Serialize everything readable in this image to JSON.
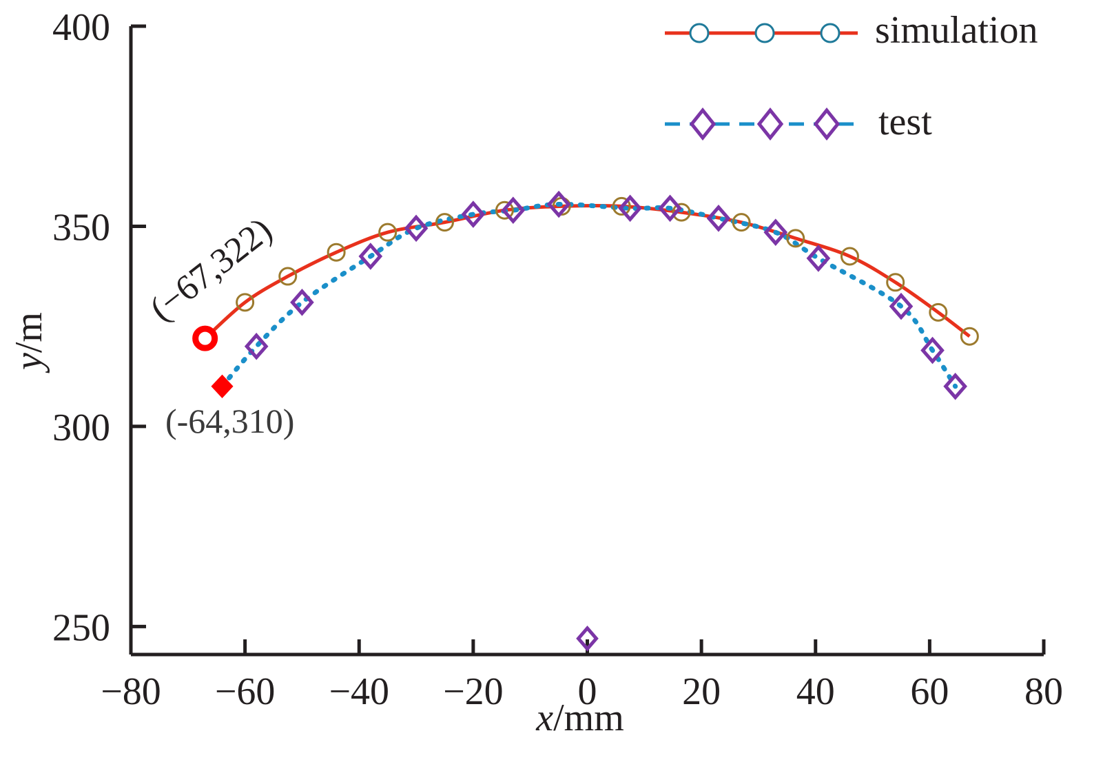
{
  "colors": {
    "axis": "#231f20",
    "simulation_line": "#e8311c",
    "simulation_marker": "#9c7a2d",
    "simulation_legend_marker": "#1f7a9a",
    "test_line": "#1a8fc9",
    "test_marker": "#7b35a6",
    "highlight": "#ff0000",
    "label_text": "#3a3a3a"
  },
  "chart_data": {
    "type": "line",
    "title": "",
    "xlabel_var": "x",
    "xlabel_unit": "/mm",
    "ylabel_var": "y",
    "ylabel_unit": "/m",
    "xlim": [
      -80,
      80
    ],
    "ylim": [
      243,
      400
    ],
    "x_ticks": [
      -80,
      -60,
      -40,
      -20,
      0,
      20,
      40,
      60,
      80
    ],
    "x_tick_labels": [
      "−80",
      "−60",
      "−40",
      "−20",
      "0",
      "20",
      "40",
      "60",
      "80"
    ],
    "y_ticks": [
      250,
      300,
      350,
      400
    ],
    "y_tick_labels": [
      "250",
      "300",
      "350",
      "400"
    ],
    "legend_position": "top-right",
    "series": [
      {
        "name": "simulation",
        "line_style": "solid",
        "marker": "circle",
        "x": [
          -67,
          -60,
          -52.5,
          -44,
          -35,
          -25,
          -14.5,
          -4.5,
          6,
          16.5,
          27,
          36.5,
          46,
          54,
          61.5,
          67
        ],
        "y": [
          322,
          331,
          337.5,
          343.5,
          348.5,
          351,
          354,
          355,
          355,
          353.5,
          351,
          347,
          342.5,
          336,
          328.5,
          322.5
        ]
      },
      {
        "name": "test",
        "line_style": "dotted",
        "marker": "diamond",
        "x": [
          -64,
          -58,
          -50,
          -38,
          -30,
          -20,
          -13,
          -5,
          7.5,
          14.5,
          23,
          33,
          40.5,
          55,
          60.5,
          64.5
        ],
        "y": [
          310,
          320,
          331,
          342.5,
          349.5,
          353,
          354,
          355.5,
          354.5,
          354.5,
          352,
          348.5,
          342,
          330,
          319,
          310
        ]
      }
    ],
    "outlier": {
      "series": "test",
      "x": 0,
      "y": 247
    },
    "annotations": [
      {
        "text": "(−67,322)",
        "x": -67,
        "y": 322
      },
      {
        "text": "(-64,310)",
        "x": -64,
        "y": 310
      }
    ]
  }
}
